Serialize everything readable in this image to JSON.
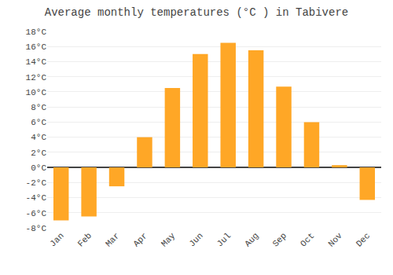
{
  "chart_data": {
    "type": "bar",
    "title": "Average monthly temperatures (°C ) in Tabivere",
    "categories": [
      "Jan",
      "Feb",
      "Mar",
      "Apr",
      "May",
      "Jun",
      "Jul",
      "Aug",
      "Sep",
      "Oct",
      "Nov",
      "Dec"
    ],
    "values": [
      -7,
      -6.5,
      -2.5,
      4,
      10.5,
      15,
      16.5,
      15.5,
      10.7,
      6,
      0.3,
      -4.3
    ],
    "color": "#FFA726",
    "ylim": [
      -8,
      18
    ],
    "yticks": [
      {
        "value": -8,
        "label": "-8°C"
      },
      {
        "value": -6,
        "label": "-6°C"
      },
      {
        "value": -4,
        "label": "-4°C"
      },
      {
        "value": -2,
        "label": "-2°C"
      },
      {
        "value": 0,
        "label": "0°C"
      },
      {
        "value": 2,
        "label": "2°C"
      },
      {
        "value": 4,
        "label": "4°C"
      },
      {
        "value": 6,
        "label": "6°C"
      },
      {
        "value": 8,
        "label": "8°C"
      },
      {
        "value": 10,
        "label": "10°C"
      },
      {
        "value": 12,
        "label": "12°C"
      },
      {
        "value": 14,
        "label": "14°C"
      },
      {
        "value": 16,
        "label": "16°C"
      },
      {
        "value": 18,
        "label": "18°C"
      }
    ],
    "grid": true
  }
}
